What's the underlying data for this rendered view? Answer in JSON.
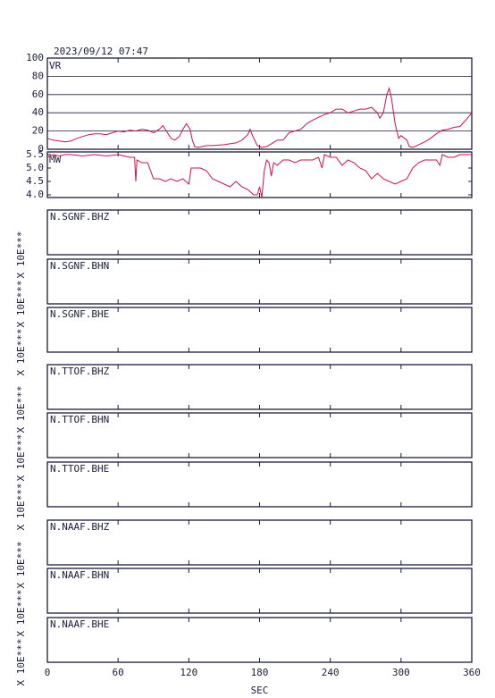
{
  "chart_data": [
    {
      "type": "line",
      "title": "2023/09/12 07:47",
      "ylabel": "VR",
      "color": "#d0104c",
      "x": [
        0,
        5,
        10,
        15,
        20,
        25,
        30,
        35,
        40,
        45,
        50,
        55,
        60,
        65,
        70,
        75,
        80,
        85,
        90,
        95,
        98,
        100,
        105,
        108,
        112,
        115,
        118,
        121,
        123,
        125,
        128,
        135,
        140,
        150,
        160,
        165,
        170,
        172,
        174,
        178,
        182,
        186,
        190,
        195,
        200,
        205,
        210,
        215,
        220,
        225,
        230,
        235,
        240,
        245,
        250,
        255,
        260,
        265,
        270,
        275,
        280,
        282,
        285,
        288,
        290,
        292,
        295,
        298,
        300,
        305,
        307,
        310,
        315,
        320,
        325,
        330,
        335,
        340,
        345,
        350,
        355,
        360
      ],
      "values": [
        12,
        10,
        9,
        8,
        9,
        12,
        14,
        16,
        17,
        17,
        16,
        18,
        20,
        19,
        21,
        20,
        22,
        21,
        18,
        22,
        26,
        22,
        12,
        10,
        14,
        22,
        28,
        22,
        10,
        3,
        2,
        4,
        4,
        5,
        7,
        10,
        16,
        22,
        15,
        4,
        2,
        3,
        6,
        10,
        10,
        18,
        20,
        22,
        28,
        32,
        35,
        38,
        40,
        44,
        44,
        40,
        42,
        44,
        44,
        46,
        40,
        34,
        40,
        60,
        67,
        55,
        28,
        12,
        15,
        10,
        3,
        2,
        5,
        8,
        12,
        17,
        21,
        22,
        24,
        25,
        32,
        40
      ],
      "xlim": [
        0,
        360
      ],
      "ylim": [
        0,
        100
      ],
      "yticks": [
        0,
        20,
        40,
        60,
        80,
        100
      ],
      "grid": true
    },
    {
      "type": "line",
      "ylabel": "MW",
      "color": "#d0104c",
      "x": [
        0,
        5,
        10,
        15,
        20,
        30,
        40,
        50,
        60,
        70,
        74,
        75,
        76,
        80,
        85,
        90,
        95,
        100,
        105,
        110,
        115,
        120,
        122,
        125,
        130,
        135,
        140,
        145,
        150,
        155,
        160,
        165,
        170,
        175,
        178,
        180,
        182,
        184,
        186,
        188,
        190,
        192,
        195,
        200,
        205,
        210,
        215,
        220,
        225,
        230,
        233,
        235,
        240,
        245,
        250,
        255,
        260,
        265,
        270,
        275,
        280,
        285,
        290,
        295,
        300,
        305,
        310,
        315,
        320,
        325,
        330,
        333,
        335,
        340,
        345,
        350,
        355,
        360
      ],
      "values": [
        5.4,
        5.5,
        5.45,
        5.5,
        5.5,
        5.45,
        5.5,
        5.45,
        5.5,
        5.4,
        5.4,
        4.5,
        5.3,
        5.2,
        5.2,
        4.6,
        4.6,
        4.5,
        4.6,
        4.5,
        4.6,
        4.4,
        5.0,
        5.0,
        5.0,
        4.9,
        4.6,
        4.5,
        4.4,
        4.3,
        4.5,
        4.3,
        4.2,
        4.0,
        4.0,
        4.3,
        3.9,
        4.9,
        5.3,
        5.2,
        4.7,
        5.2,
        5.1,
        5.3,
        5.3,
        5.2,
        5.3,
        5.3,
        5.3,
        5.4,
        5.0,
        5.5,
        5.4,
        5.4,
        5.1,
        5.3,
        5.2,
        5.0,
        4.9,
        4.6,
        4.8,
        4.6,
        4.5,
        4.4,
        4.5,
        4.6,
        5.0,
        5.2,
        5.3,
        5.3,
        5.3,
        5.1,
        5.5,
        5.4,
        5.4,
        5.5,
        5.5,
        5.5
      ],
      "xlim": [
        0,
        360
      ],
      "ylim": [
        3.9,
        5.6
      ],
      "yticks": [
        5.5,
        {
          "value": 5,
          "label": "5.0"
        },
        4.5,
        {
          "value": 4,
          "label": "4.0"
        }
      ]
    },
    {
      "type": "line",
      "title": "N.SGNF.BHZ",
      "ylabel": "X 10E***"
    },
    {
      "type": "line",
      "title": "N.SGNF.BHN",
      "ylabel": "X 10E***"
    },
    {
      "type": "line",
      "title": "N.SGNF.BHE",
      "ylabel": "X 10E***"
    },
    {
      "type": "line",
      "title": "N.TTOF.BHZ",
      "ylabel": "X 10E***"
    },
    {
      "type": "line",
      "title": "N.TTOF.BHN",
      "ylabel": "X 10E***"
    },
    {
      "type": "line",
      "title": "N.TTOF.BHE",
      "ylabel": "X 10E***"
    },
    {
      "type": "line",
      "title": "N.NAAF.BHZ",
      "ylabel": "X 10E***"
    },
    {
      "type": "line",
      "title": "N.NAAF.BHN",
      "ylabel": "X 10E***"
    },
    {
      "type": "line",
      "title": "N.NAAF.BHE",
      "ylabel": "X 10E***",
      "xlim": [
        0,
        360
      ],
      "xticks": [
        0,
        60,
        120,
        180,
        240,
        300,
        360
      ],
      "xlabel": "SEC"
    }
  ]
}
